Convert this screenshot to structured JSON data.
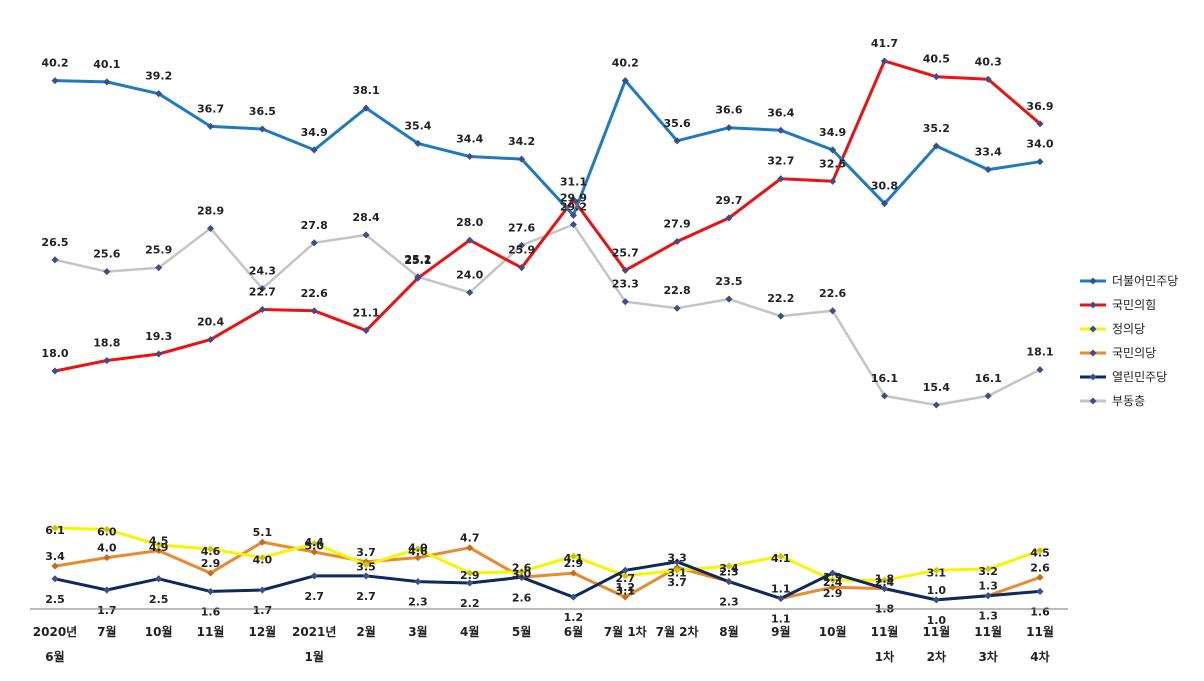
{
  "chart_data": {
    "type": "line",
    "x": [
      {
        "line1": "2020년",
        "line2": "6월"
      },
      {
        "line1": "7월",
        "line2": ""
      },
      {
        "line1": "10월",
        "line2": ""
      },
      {
        "line1": "11월",
        "line2": ""
      },
      {
        "line1": "12월",
        "line2": ""
      },
      {
        "line1": "2021년",
        "line2": "1월"
      },
      {
        "line1": "2월",
        "line2": ""
      },
      {
        "line1": "3월",
        "line2": ""
      },
      {
        "line1": "4월",
        "line2": ""
      },
      {
        "line1": "5월",
        "line2": ""
      },
      {
        "line1": "6월",
        "line2": ""
      },
      {
        "line1": "7월 1차",
        "line2": ""
      },
      {
        "line1": "7월 2차",
        "line2": ""
      },
      {
        "line1": "8월",
        "line2": ""
      },
      {
        "line1": "9월",
        "line2": ""
      },
      {
        "line1": "10월",
        "line2": ""
      },
      {
        "line1": "11월",
        "line2": "1차"
      },
      {
        "line1": "11월",
        "line2": "2차"
      },
      {
        "line1": "11월",
        "line2": "3차"
      },
      {
        "line1": "11월",
        "line2": "4차"
      }
    ],
    "series": [
      {
        "name": "더불어민주당",
        "color": "#1f7bbf",
        "values": [
          40.2,
          40.1,
          39.2,
          36.7,
          36.5,
          34.9,
          38.1,
          35.4,
          34.4,
          34.2,
          29.9,
          40.2,
          35.6,
          36.6,
          36.4,
          34.9,
          30.8,
          35.2,
          33.4,
          34.0
        ]
      },
      {
        "name": "국민의힘",
        "color": "#ee1111",
        "values": [
          18.0,
          18.8,
          19.3,
          20.4,
          22.7,
          22.6,
          21.1,
          25.1,
          28.0,
          25.9,
          31.1,
          25.7,
          27.9,
          29.7,
          32.7,
          32.5,
          41.7,
          40.5,
          40.3,
          36.9
        ]
      },
      {
        "name": "정의당",
        "color": "#f6f600",
        "values": [
          6.1,
          6.0,
          4.9,
          4.6,
          4.0,
          5.0,
          3.5,
          4.6,
          2.9,
          3.0,
          4.1,
          2.7,
          3.1,
          3.4,
          4.1,
          2.4,
          2.4,
          3.1,
          3.2,
          4.5
        ]
      },
      {
        "name": "국민의당",
        "color": "#e88a2e",
        "values": [
          3.4,
          4.0,
          4.5,
          2.9,
          5.1,
          4.4,
          3.7,
          4.0,
          4.7,
          2.6,
          2.9,
          1.2,
          3.3,
          2.3,
          1.1,
          1.9,
          1.8,
          1.0,
          1.3,
          2.6
        ]
      },
      {
        "name": "열린민주당",
        "color": "#0d2a5c",
        "values": [
          2.5,
          1.7,
          2.5,
          1.6,
          1.7,
          2.7,
          2.7,
          2.3,
          2.2,
          2.6,
          1.2,
          3.1,
          3.7,
          2.3,
          1.1,
          2.9,
          1.8,
          1.0,
          1.3,
          1.6
        ]
      },
      {
        "name": "부동층",
        "color": "#c4c4c4",
        "values": [
          26.5,
          25.6,
          25.9,
          28.9,
          24.3,
          27.8,
          28.4,
          25.2,
          24.0,
          27.6,
          29.2,
          23.3,
          22.8,
          23.5,
          22.2,
          22.6,
          16.1,
          15.4,
          16.1,
          18.1
        ]
      }
    ],
    "labels": {
      "더불어민주당": [
        "40.2",
        "40.1",
        "39.2",
        "36.7",
        "36.5",
        "34.9",
        "38.1",
        "35.4",
        "34.4",
        "34.2",
        "29.9",
        "40.2",
        "35.6",
        "36.6",
        "36.4",
        "34.9",
        "30.8",
        "35.2",
        "33.4",
        "34.0"
      ],
      "국민의힘": [
        "18.0",
        "18.8",
        "19.3",
        "20.4",
        "22.7",
        "22.6",
        "21.1",
        "25.1",
        "28.0",
        "25.9",
        "31.1",
        "25.7",
        "27.9",
        "29.7",
        "32.7",
        "32.5",
        "41.7",
        "40.5",
        "40.3",
        "36.9"
      ],
      "부동층": [
        "26.5",
        "25.6",
        "25.9",
        "28.9",
        "24.3",
        "27.8",
        "28.4",
        "25.2",
        "24.0",
        "27.6",
        "29.2",
        "23.3",
        "22.8",
        "23.5",
        "22.2",
        "22.6",
        "16.1",
        "15.4",
        "16.1",
        "18.1"
      ],
      "정의당": [
        "6.1",
        "6.0",
        "4.9",
        "4.6",
        "4.0",
        "5.0",
        "3.5",
        "4.6",
        "2.9",
        "3.0",
        "4.1",
        "2.7",
        "3.1",
        "3.4",
        "4.1",
        "2.4",
        "2.4",
        "3.1",
        "3.2",
        "4.5"
      ],
      "국민의당": [
        "3.4",
        "4.0",
        "4.5",
        "2.9",
        "5.1",
        "4.4",
        "3.7",
        "4.0",
        "4.7",
        "2.6",
        "2.9",
        "1.2",
        "3.3",
        "2.3",
        "1.1",
        "1.9",
        "1.8",
        "1.0",
        "1.3",
        "2.6"
      ],
      "열린민주당": [
        "2.5",
        "1.7",
        "2.5",
        "1.6",
        "1.7",
        "2.7",
        "2.7",
        "2.3",
        "2.2",
        "2.6",
        "1.2",
        "3.1",
        "3.7",
        "2.3",
        "1.1",
        "2.9",
        "1.8",
        "1.0",
        "1.3",
        "1.6"
      ]
    },
    "legend_position": "right",
    "grid": false,
    "title": "",
    "xlabel": "",
    "ylabel": ""
  }
}
